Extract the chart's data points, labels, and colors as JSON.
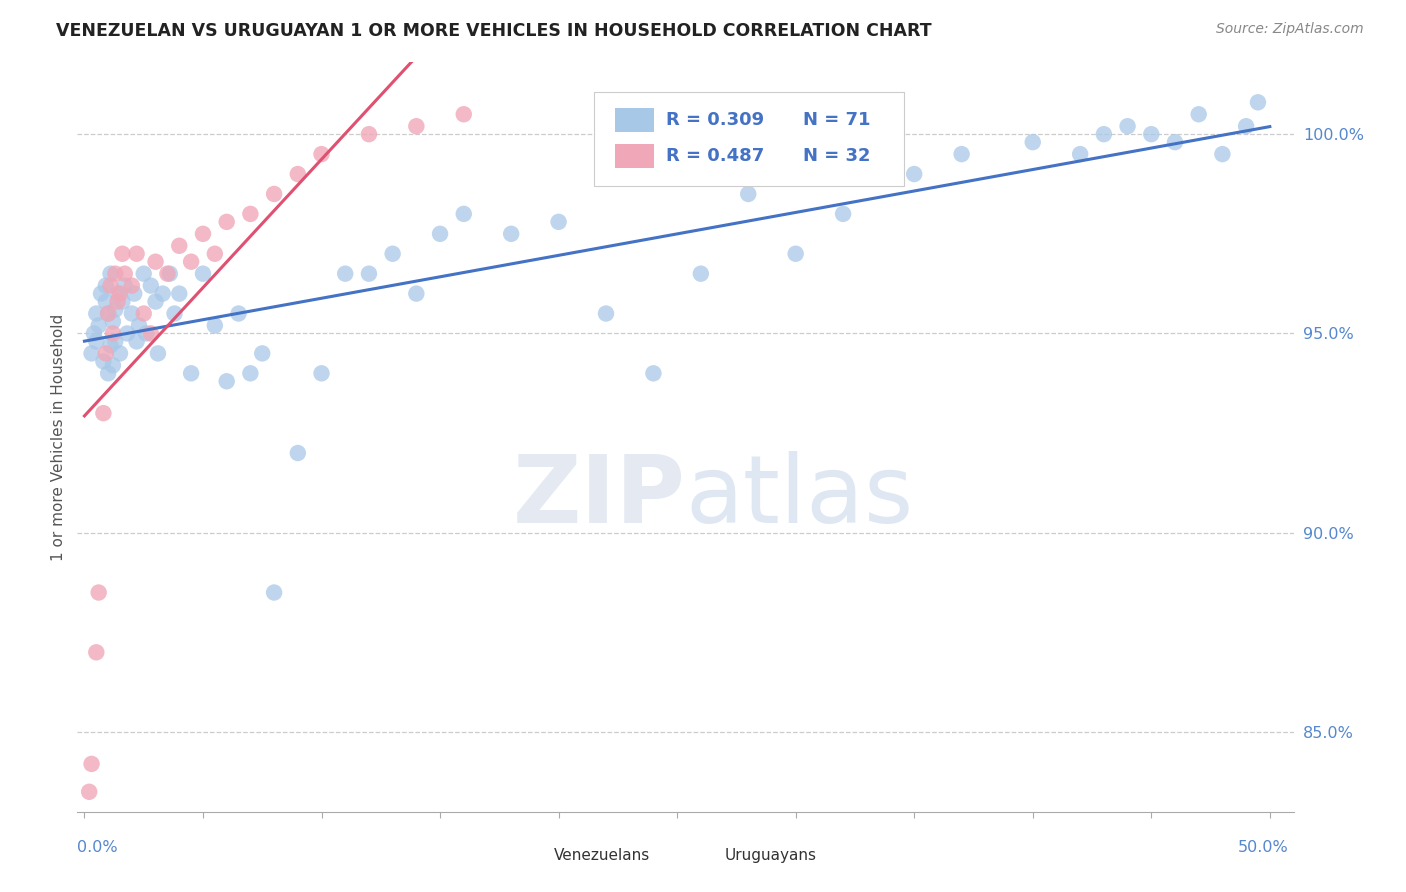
{
  "title": "VENEZUELAN VS URUGUAYAN 1 OR MORE VEHICLES IN HOUSEHOLD CORRELATION CHART",
  "source": "Source: ZipAtlas.com",
  "ylabel": "1 or more Vehicles in Household",
  "xrange": [
    0.0,
    50.0
  ],
  "yrange": [
    83.0,
    101.5
  ],
  "r_venezuelan": 0.309,
  "n_venezuelan": 71,
  "r_uruguayan": 0.487,
  "n_uruguayan": 32,
  "blue_color": "#A8C8E8",
  "pink_color": "#F0A8B8",
  "blue_line_color": "#4472C4",
  "pink_line_color": "#E05070",
  "legend_text_color": "#4472C4",
  "title_color": "#333333",
  "venezuelan_x": [
    0.3,
    0.4,
    0.5,
    0.5,
    0.6,
    0.7,
    0.8,
    0.9,
    0.9,
    1.0,
    1.0,
    1.1,
    1.1,
    1.2,
    1.2,
    1.3,
    1.3,
    1.4,
    1.5,
    1.6,
    1.7,
    1.8,
    2.0,
    2.1,
    2.2,
    2.3,
    2.5,
    2.6,
    2.8,
    3.0,
    3.1,
    3.3,
    3.6,
    3.8,
    4.0,
    4.5,
    5.0,
    5.5,
    6.0,
    6.5,
    7.0,
    7.5,
    8.0,
    9.0,
    10.0,
    11.0,
    12.0,
    13.0,
    14.0,
    15.0,
    16.0,
    18.0,
    20.0,
    22.0,
    24.0,
    26.0,
    28.0,
    30.0,
    32.0,
    35.0,
    37.0,
    40.0,
    42.0,
    43.0,
    44.0,
    45.0,
    46.0,
    47.0,
    48.0,
    49.0,
    49.5
  ],
  "venezuelan_y": [
    94.5,
    95.0,
    94.8,
    95.5,
    95.2,
    96.0,
    94.3,
    95.8,
    96.2,
    94.0,
    95.5,
    94.7,
    96.5,
    94.2,
    95.3,
    94.8,
    95.6,
    96.0,
    94.5,
    95.8,
    96.2,
    95.0,
    95.5,
    96.0,
    94.8,
    95.2,
    96.5,
    95.0,
    96.2,
    95.8,
    94.5,
    96.0,
    96.5,
    95.5,
    96.0,
    94.0,
    96.5,
    95.2,
    93.8,
    95.5,
    94.0,
    94.5,
    88.5,
    92.0,
    94.0,
    96.5,
    96.5,
    97.0,
    96.0,
    97.5,
    98.0,
    97.5,
    97.8,
    95.5,
    94.0,
    96.5,
    98.5,
    97.0,
    98.0,
    99.0,
    99.5,
    99.8,
    99.5,
    100.0,
    100.2,
    100.0,
    99.8,
    100.5,
    99.5,
    100.2,
    100.8
  ],
  "uruguayan_x": [
    0.2,
    0.3,
    0.5,
    0.6,
    0.8,
    0.9,
    1.0,
    1.1,
    1.2,
    1.3,
    1.4,
    1.5,
    1.6,
    1.7,
    2.0,
    2.2,
    2.5,
    2.8,
    3.0,
    3.5,
    4.0,
    4.5,
    5.0,
    5.5,
    6.0,
    7.0,
    8.0,
    9.0,
    10.0,
    12.0,
    14.0,
    16.0
  ],
  "uruguayan_y": [
    83.5,
    84.2,
    87.0,
    88.5,
    93.0,
    94.5,
    95.5,
    96.2,
    95.0,
    96.5,
    95.8,
    96.0,
    97.0,
    96.5,
    96.2,
    97.0,
    95.5,
    95.0,
    96.8,
    96.5,
    97.2,
    96.8,
    97.5,
    97.0,
    97.8,
    98.0,
    98.5,
    99.0,
    99.5,
    100.0,
    100.2,
    100.5
  ],
  "ytick_positions": [
    85.0,
    90.0,
    95.0,
    100.0
  ],
  "ytick_labels": [
    "85.0%",
    "90.0%",
    "95.0%",
    "100.0%"
  ],
  "xtick_positions": [
    0,
    5,
    10,
    15,
    20,
    25,
    30,
    35,
    40,
    45,
    50
  ]
}
